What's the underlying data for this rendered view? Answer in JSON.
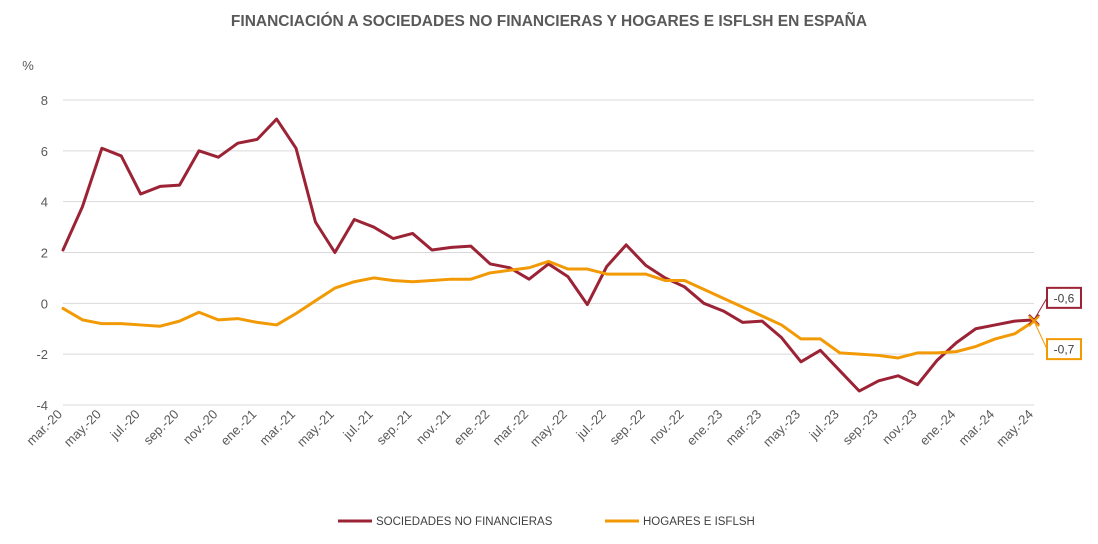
{
  "chart_data": {
    "type": "line",
    "title": "FINANCIACIÓN A SOCIEDADES NO FINANCIERAS Y HOGARES E ISFLSH EN ESPAÑA",
    "ylabel": "%",
    "ylim": [
      -4,
      8
    ],
    "yticks": [
      "8",
      "6",
      "4",
      "2",
      "0",
      "-2",
      "-4"
    ],
    "ytick_values": [
      8,
      6,
      4,
      2,
      0,
      -2,
      -4
    ],
    "grid": true,
    "legend_position": "bottom",
    "x_labels": [
      "mar.-20",
      "may.-20",
      "jul.-20",
      "sep.-20",
      "nov.-20",
      "ene.-21",
      "mar.-21",
      "may.-21",
      "jul.-21",
      "sep.-21",
      "nov.-21",
      "ene.-22",
      "mar.-22",
      "may.-22",
      "jul.-22",
      "sep.-22",
      "nov.-22",
      "ene.-23",
      "mar.-23",
      "may.-23",
      "jul.-23",
      "sep.-23",
      "nov.-23",
      "ene.-24",
      "mar.-24",
      "may.-24"
    ],
    "months": [
      "mar.-20",
      "abr.-20",
      "may.-20",
      "jun.-20",
      "jul.-20",
      "ago.-20",
      "sep.-20",
      "oct.-20",
      "nov.-20",
      "dic.-20",
      "ene.-21",
      "feb.-21",
      "mar.-21",
      "abr.-21",
      "may.-21",
      "jun.-21",
      "jul.-21",
      "ago.-21",
      "sep.-21",
      "oct.-21",
      "nov.-21",
      "dic.-21",
      "ene.-22",
      "feb.-22",
      "mar.-22",
      "abr.-22",
      "may.-22",
      "jun.-22",
      "jul.-22",
      "ago.-22",
      "sep.-22",
      "oct.-22",
      "nov.-22",
      "dic.-22",
      "ene.-23",
      "feb.-23",
      "mar.-23",
      "abr.-23",
      "may.-23",
      "jun.-23",
      "jul.-23",
      "ago.-23",
      "sep.-23",
      "oct.-23",
      "nov.-23",
      "dic.-23",
      "ene.-24",
      "feb.-24",
      "mar.-24",
      "abr.-24",
      "may.-24"
    ],
    "series": [
      {
        "name": "SOCIEDADES NO FINANCIERAS",
        "color": "#9b2335",
        "end_label": "-0,6",
        "values": [
          2.1,
          3.8,
          6.1,
          5.8,
          4.3,
          4.6,
          4.65,
          6.0,
          5.75,
          6.3,
          6.45,
          7.25,
          6.1,
          3.2,
          2.0,
          3.3,
          3.0,
          2.55,
          2.75,
          2.1,
          2.2,
          2.25,
          1.55,
          1.4,
          0.95,
          1.55,
          1.05,
          -0.05,
          1.45,
          2.3,
          1.5,
          1.0,
          0.65,
          0.0,
          -0.3,
          -0.75,
          -0.7,
          -1.35,
          -2.3,
          -1.85,
          -2.65,
          -3.45,
          -3.05,
          -2.85,
          -3.2,
          -2.25,
          -1.55,
          -1.0,
          -0.85,
          -0.7,
          -0.65
        ]
      },
      {
        "name": "HOGARES E ISFLSH",
        "color": "#f29a05",
        "end_label": "-0,7",
        "values": [
          -0.2,
          -0.65,
          -0.8,
          -0.8,
          -0.85,
          -0.9,
          -0.7,
          -0.35,
          -0.65,
          -0.6,
          -0.75,
          -0.85,
          -0.4,
          0.1,
          0.6,
          0.85,
          1.0,
          0.9,
          0.85,
          0.9,
          0.95,
          0.95,
          1.2,
          1.3,
          1.4,
          1.65,
          1.35,
          1.35,
          1.15,
          1.15,
          1.15,
          0.9,
          0.9,
          0.55,
          0.2,
          -0.15,
          -0.5,
          -0.85,
          -1.4,
          -1.4,
          -1.95,
          -2.0,
          -2.05,
          -2.15,
          -1.95,
          -1.95,
          -1.9,
          -1.7,
          -1.4,
          -1.2,
          -0.7
        ]
      }
    ]
  }
}
